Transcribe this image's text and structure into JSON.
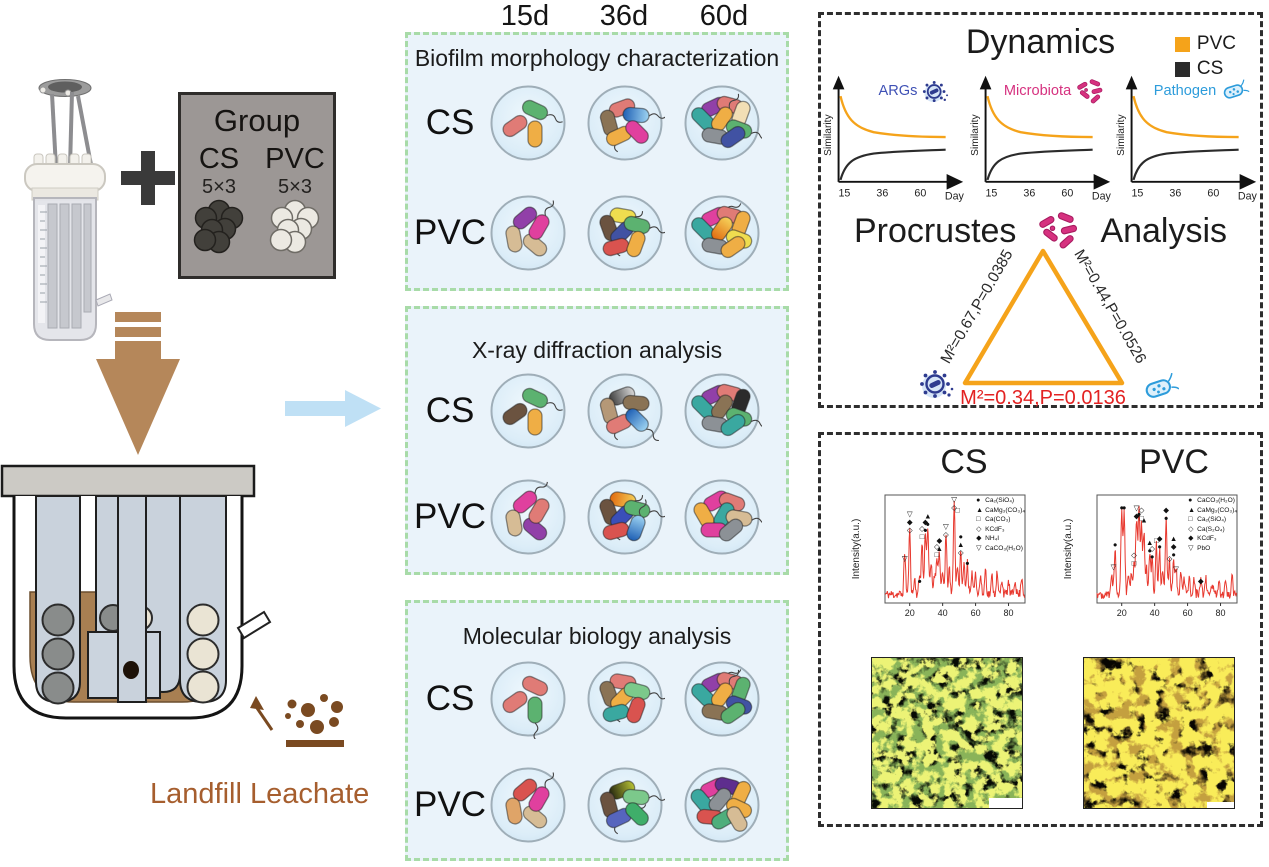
{
  "colors": {
    "pvc": "#F5A31A",
    "cs": "#2B2B2B",
    "xrd_line": "#E8392F",
    "accent_red": "#E32222",
    "leachate_text": "#A65E2E",
    "arrow_brown": "#B5875A",
    "dots_brown": "#7A4A21",
    "panel_border_green": "#A8DBA8",
    "panel_bg_blue": "#EAF3FA",
    "flow_arrow": "#BFE0F5"
  },
  "timeline": {
    "labels": [
      "15d",
      "36d",
      "60d"
    ]
  },
  "left": {
    "group": {
      "title": "Group",
      "cols": [
        {
          "name": "CS",
          "count": "5×3"
        },
        {
          "name": "PVC",
          "count": "5×3"
        }
      ]
    },
    "leachate_label": "Landfill Leachate"
  },
  "panels": [
    {
      "title": "Biofilm morphology characterization",
      "rows": [
        {
          "label": "CS",
          "dishes": [
            [
              "#E07B76",
              "#5CB270|f",
              "#EFAE45"
            ],
            [
              "#E07B76",
              "#8A7355|f",
              "gBlue|f",
              "#EFAE45",
              "#E0409E"
            ],
            [
              "#9140A8",
              "#E07B76",
              "#F2DFB5",
              "#3AA8A0",
              "#EFAE45|f",
              "#5CB270|f",
              "#8C9196",
              "#4152A3"
            ]
          ]
        },
        {
          "label": "PVC",
          "dishes": [
            [
              "#9140A8",
              "#D6BC95",
              "#D6BC95",
              "#E0409E|f"
            ],
            [
              "#EFDD4F",
              "#6B5340|f",
              "#4152A3|f",
              "#5CB270|f",
              "#D9534F",
              "#EFAE45"
            ],
            [
              "#E0409E|f",
              "#E07B76",
              "#EFAE45",
              "#3AA8A0",
              "gOrange",
              "#EFDD4F",
              "#8C9196",
              "#EFAE45"
            ]
          ]
        }
      ]
    },
    {
      "title": "X-ray diffraction analysis",
      "rows": [
        {
          "label": "CS",
          "dishes": [
            [
              "#6B5340",
              "#5CB270|f",
              "#EFAE45"
            ],
            [
              "gGray",
              "#B59877|f",
              "#8A7355",
              "#E07B76",
              "gBlue|f"
            ],
            [
              "#9140A8",
              "#E07B76",
              "#2B2B2B",
              "#3AA8A0",
              "#8A7355",
              "#5CB270|f",
              "#8C9196",
              "#3AA8A0"
            ]
          ]
        },
        {
          "label": "PVC",
          "dishes": [
            [
              "#E0409E|f",
              "#D6BC95",
              "#9140A8",
              "#E07B76"
            ],
            [
              "gOrange",
              "#6B5340|f",
              "#3A4FB8|f",
              "#5CB270|f",
              "#D9534F",
              "gBlue|f"
            ],
            [
              "#E0409E",
              "#E07B76",
              "#EFAE45",
              "#3AA8A0",
              "#D6BC95|f",
              "#E0409E",
              "#8C9196"
            ]
          ]
        }
      ]
    },
    {
      "title": "Molecular biology analysis",
      "rows": [
        {
          "label": "CS",
          "dishes": [
            [
              "#E07B76",
              "#E07B76",
              "#5CB270|f"
            ],
            [
              "#E07B76",
              "#8A7355|f",
              "#EFAE45",
              "#7CC98B|f",
              "#3AA8A0",
              "#D9534F"
            ],
            [
              "#9140A8|f",
              "#E07B76",
              "#5CB270",
              "#3AA8A0",
              "#EFAE45|f",
              "#4152A3",
              "#8A7355",
              "#5CB270"
            ]
          ]
        },
        {
          "label": "PVC",
          "dishes": [
            [
              "#D9534F",
              "#DFA468",
              "#D6BC95",
              "#E0409E|f"
            ],
            [
              "gOlive",
              "#6B5340|f",
              "#7CC98B|f",
              "#5665BE|f",
              "#3FAE6A"
            ],
            [
              "#E0409E",
              "#5E2E8E",
              "#EFAE45",
              "#3AA8A0",
              "#8C9196",
              "#EFAE45",
              "#D9534F",
              "#4FAE7C",
              "#D6BC95"
            ]
          ]
        }
      ]
    }
  ],
  "dynamics": {
    "title": "Dynamics",
    "legend": [
      {
        "label": "PVC",
        "color": "#F5A31A"
      },
      {
        "label": "CS",
        "color": "#2B2B2B"
      }
    ],
    "charts": [
      {
        "label": "ARGs",
        "label_color": "#3F51B5"
      },
      {
        "label": "Microbiota",
        "label_color": "#D6317F"
      },
      {
        "label": "Pathogen",
        "label_color": "#2D9CDB"
      }
    ],
    "ylabel": "Similarity",
    "xlabel": "Day",
    "xticks": [
      "15",
      "36",
      "60"
    ]
  },
  "procrustes": {
    "title_left": "Procrustes",
    "title_right": "Analysis",
    "left_label": "M²=0.67,P=0.0385",
    "right_label": "M²=0.44,P=0.0526",
    "bottom_label": "M²=0.34,P=0.0136"
  },
  "chart_data": [
    {
      "id": "dynamics-args",
      "type": "line",
      "title": "ARGs",
      "xlabel": "Day",
      "ylabel": "Similarity",
      "xticks": [
        15,
        36,
        60
      ],
      "series": [
        {
          "name": "PVC",
          "color": "#F5A31A",
          "x": [
            15,
            20,
            26,
            33,
            40,
            50,
            60
          ],
          "y": [
            0.95,
            0.74,
            0.63,
            0.57,
            0.54,
            0.52,
            0.51
          ]
        },
        {
          "name": "CS",
          "color": "#2B2B2B",
          "x": [
            15,
            20,
            26,
            33,
            40,
            50,
            60
          ],
          "y": [
            0.05,
            0.24,
            0.33,
            0.38,
            0.41,
            0.43,
            0.44
          ]
        }
      ]
    },
    {
      "id": "dynamics-microbiota",
      "type": "line",
      "title": "Microbiota",
      "xlabel": "Day",
      "ylabel": "Similarity",
      "xticks": [
        15,
        36,
        60
      ],
      "series": [
        {
          "name": "PVC",
          "color": "#F5A31A",
          "x": [
            15,
            20,
            26,
            33,
            40,
            50,
            60
          ],
          "y": [
            0.95,
            0.74,
            0.63,
            0.57,
            0.54,
            0.52,
            0.51
          ]
        },
        {
          "name": "CS",
          "color": "#2B2B2B",
          "x": [
            15,
            20,
            26,
            33,
            40,
            50,
            60
          ],
          "y": [
            0.05,
            0.24,
            0.33,
            0.38,
            0.41,
            0.43,
            0.44
          ]
        }
      ]
    },
    {
      "id": "dynamics-pathogen",
      "type": "line",
      "title": "Pathogen",
      "xlabel": "Day",
      "ylabel": "Similarity",
      "xticks": [
        15,
        36,
        60
      ],
      "series": [
        {
          "name": "PVC",
          "color": "#F5A31A",
          "x": [
            15,
            20,
            26,
            33,
            40,
            50,
            60
          ],
          "y": [
            0.95,
            0.74,
            0.63,
            0.57,
            0.54,
            0.52,
            0.51
          ]
        },
        {
          "name": "CS",
          "color": "#2B2B2B",
          "x": [
            15,
            20,
            26,
            33,
            40,
            50,
            60
          ],
          "y": [
            0.05,
            0.24,
            0.33,
            0.38,
            0.41,
            0.43,
            0.44
          ]
        }
      ]
    },
    {
      "id": "xrd-cs",
      "type": "line",
      "title": "CS",
      "xlabel": "",
      "ylabel": "Intensity(a.u.)",
      "xticks": [
        20,
        40,
        60,
        80
      ],
      "xrange": [
        5,
        90
      ],
      "line_color": "#E8392F",
      "peaks": [
        [
          17,
          0.42
        ],
        [
          20,
          0.62
        ],
        [
          23,
          0.15
        ],
        [
          26,
          0.18
        ],
        [
          27.5,
          0.5
        ],
        [
          29.5,
          0.62
        ],
        [
          31,
          0.68
        ],
        [
          33,
          0.3
        ],
        [
          35,
          0.2
        ],
        [
          36.5,
          0.38
        ],
        [
          38,
          0.42
        ],
        [
          40,
          0.2
        ],
        [
          42,
          0.58
        ],
        [
          44,
          0.25
        ],
        [
          47,
          0.92
        ],
        [
          49,
          0.3
        ],
        [
          51,
          0.4
        ],
        [
          53,
          0.3
        ],
        [
          55,
          0.32
        ],
        [
          58,
          0.2
        ],
        [
          60,
          0.22
        ],
        [
          63,
          0.18
        ],
        [
          66,
          0.25
        ],
        [
          70,
          0.18
        ],
        [
          73,
          0.2
        ],
        [
          76,
          0.15
        ],
        [
          80,
          0.12
        ],
        [
          84,
          0.15
        ],
        [
          88,
          0.18
        ]
      ],
      "annotations": [
        {
          "x": 17,
          "y": 0.38,
          "s": [
            "▽"
          ]
        },
        {
          "x": 20,
          "y": 0.66,
          "s": [
            "◇",
            "◆",
            "▽"
          ]
        },
        {
          "x": 26,
          "y": 0.16,
          "s": [
            "●"
          ]
        },
        {
          "x": 27.5,
          "y": 0.6,
          "s": [
            "□",
            "◇"
          ]
        },
        {
          "x": 29.5,
          "y": 0.66,
          "s": [
            "●",
            "◆"
          ]
        },
        {
          "x": 31,
          "y": 0.72,
          "s": [
            "●",
            "▲"
          ]
        },
        {
          "x": 36.5,
          "y": 0.42,
          "s": [
            "□",
            "◇"
          ]
        },
        {
          "x": 38,
          "y": 0.48,
          "s": [
            "▲",
            "◆"
          ]
        },
        {
          "x": 42,
          "y": 0.62,
          "s": [
            "◇",
            "▽"
          ]
        },
        {
          "x": 47,
          "y": 0.88,
          "s": [
            "◇",
            "▽"
          ]
        },
        {
          "x": 49,
          "y": 0.86,
          "s": [
            "□"
          ]
        },
        {
          "x": 51,
          "y": 0.44,
          "s": [
            "◇",
            "▲",
            "●"
          ]
        },
        {
          "x": 55,
          "y": 0.34,
          "s": [
            "●"
          ]
        }
      ],
      "legend": [
        {
          "marker": "●",
          "label": "Ca₂(SiO₄)"
        },
        {
          "marker": "▲",
          "label": "CaMg₃(CO₃)₄"
        },
        {
          "marker": "□",
          "label": "Ca(CO₃)"
        },
        {
          "marker": "◇",
          "label": "KCdF₃"
        },
        {
          "marker": "◆",
          "label": "NH₄I"
        },
        {
          "marker": "▽",
          "label": "CaCO₃(H₂O)"
        }
      ]
    },
    {
      "id": "xrd-pvc",
      "type": "line",
      "title": "PVC",
      "xlabel": "",
      "ylabel": "Intensity(a.u.)",
      "xticks": [
        20,
        40,
        60,
        80
      ],
      "xrange": [
        5,
        90
      ],
      "line_color": "#E8392F",
      "peaks": [
        [
          14,
          0.18
        ],
        [
          16,
          0.48
        ],
        [
          20,
          0.85
        ],
        [
          21.5,
          0.8
        ],
        [
          24,
          0.2
        ],
        [
          26,
          0.22
        ],
        [
          27.5,
          0.3
        ],
        [
          29,
          0.75
        ],
        [
          30.5,
          0.85
        ],
        [
          32,
          0.7
        ],
        [
          33.5,
          0.6
        ],
        [
          35,
          0.25
        ],
        [
          37,
          0.4
        ],
        [
          38.5,
          0.35
        ],
        [
          41,
          0.5
        ],
        [
          43,
          0.45
        ],
        [
          45,
          0.25
        ],
        [
          47,
          0.72
        ],
        [
          49,
          0.32
        ],
        [
          51.5,
          0.36
        ],
        [
          53,
          0.25
        ],
        [
          56,
          0.2
        ],
        [
          58,
          0.15
        ],
        [
          61,
          0.18
        ],
        [
          64,
          0.15
        ],
        [
          68,
          0.14
        ],
        [
          71,
          0.16
        ],
        [
          75,
          0.12
        ],
        [
          79,
          0.14
        ],
        [
          83,
          0.12
        ],
        [
          87,
          0.16
        ]
      ],
      "annotations": [
        {
          "x": 15,
          "y": 0.3,
          "s": [
            "▽"
          ]
        },
        {
          "x": 16,
          "y": 0.52,
          "s": [
            "●"
          ]
        },
        {
          "x": 20,
          "y": 0.88,
          "s": [
            "●"
          ]
        },
        {
          "x": 21.5,
          "y": 0.88,
          "s": [
            "●"
          ]
        },
        {
          "x": 27.5,
          "y": 0.34,
          "s": [
            "□",
            "◇"
          ]
        },
        {
          "x": 29,
          "y": 0.8,
          "s": [
            "◆",
            "▽"
          ]
        },
        {
          "x": 30.5,
          "y": 0.82,
          "s": [
            "●"
          ]
        },
        {
          "x": 32,
          "y": 0.78,
          "s": [
            "□",
            "◇"
          ]
        },
        {
          "x": 33.5,
          "y": 0.76,
          "s": [
            "▲"
          ]
        },
        {
          "x": 37,
          "y": 0.46,
          "s": [
            "●",
            "▲"
          ]
        },
        {
          "x": 38.5,
          "y": 0.4,
          "s": [
            "●",
            "◇"
          ]
        },
        {
          "x": 41,
          "y": 0.56,
          "s": [
            "□"
          ]
        },
        {
          "x": 43,
          "y": 0.5,
          "s": [
            "●",
            "◆"
          ]
        },
        {
          "x": 47,
          "y": 0.78,
          "s": [
            "●",
            "◆"
          ]
        },
        {
          "x": 49,
          "y": 0.38,
          "s": [
            "◇"
          ]
        },
        {
          "x": 51.5,
          "y": 0.42,
          "s": [
            "●",
            "◆",
            "▲"
          ]
        },
        {
          "x": 53,
          "y": 0.28,
          "s": [
            "▽"
          ]
        },
        {
          "x": 68,
          "y": 0.16,
          "s": [
            "◆"
          ]
        }
      ],
      "legend": [
        {
          "marker": "●",
          "label": "CaCO₃(H₂O)"
        },
        {
          "marker": "▲",
          "label": "CaMg₃(CO₃)₄"
        },
        {
          "marker": "□",
          "label": "Ca₂(SiO₄)"
        },
        {
          "marker": "◇",
          "label": "Ca(S₂O₄)"
        },
        {
          "marker": "◆",
          "label": "KCdF₃"
        },
        {
          "marker": "▽",
          "label": "PbO"
        }
      ]
    }
  ]
}
